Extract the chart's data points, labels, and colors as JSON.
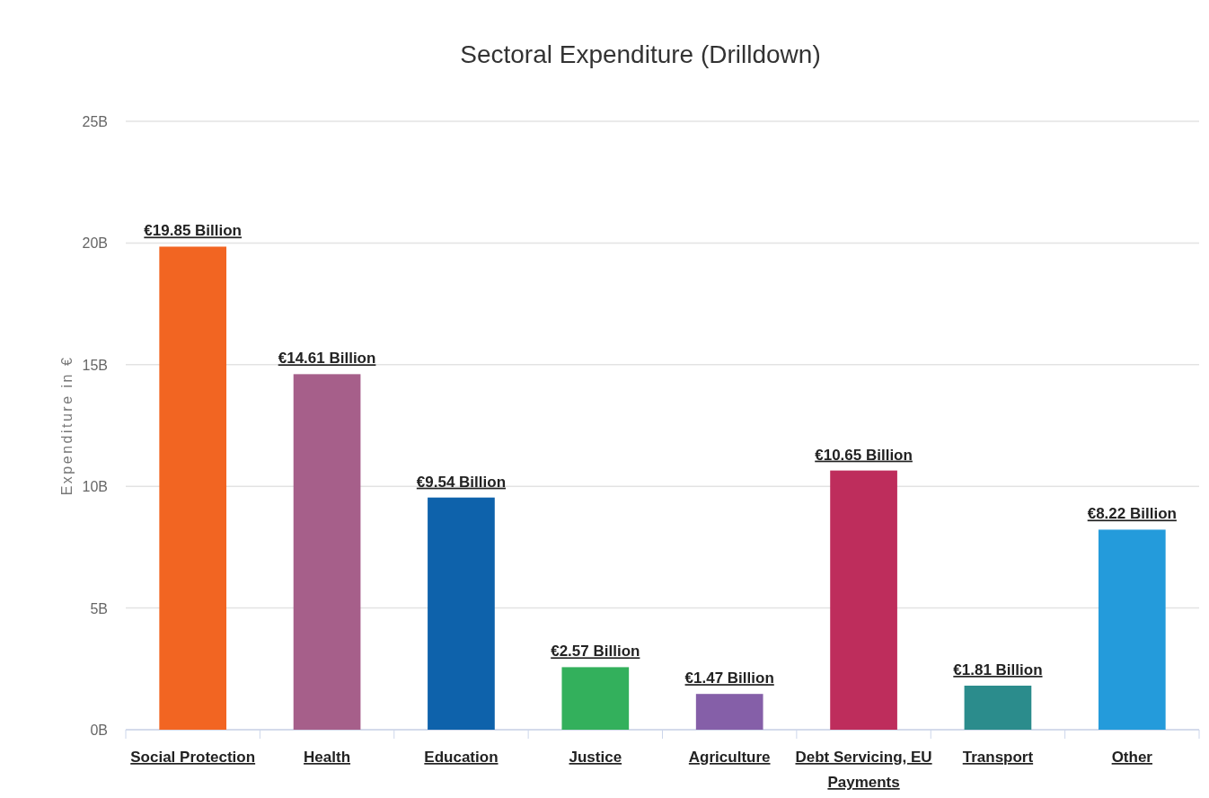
{
  "chart_data": {
    "type": "bar",
    "title": "Sectoral Expenditure (Drilldown)",
    "ylabel": "Expenditure in €",
    "categories": [
      "Social Protection",
      "Health",
      "Education",
      "Justice",
      "Agriculture",
      "Debt Servicing, EU Payments",
      "Transport",
      "Other"
    ],
    "values": [
      19.85,
      14.61,
      9.54,
      2.57,
      1.47,
      10.65,
      1.81,
      8.22
    ],
    "colors": [
      "#f26522",
      "#a65f8a",
      "#0e62ab",
      "#33b05c",
      "#855fa8",
      "#be2d5c",
      "#2b8c8c",
      "#249bdb"
    ],
    "value_labels": [
      "€19.85 Billion",
      "€14.61 Billion",
      "€9.54 Billion",
      "€2.57 Billion",
      "€1.47 Billion",
      "€10.65 Billion",
      "€1.81 Billion",
      "€8.22 Billion"
    ],
    "ylim": [
      0,
      25
    ],
    "yticks": [
      {
        "value": 0,
        "label": "0B"
      },
      {
        "value": 5,
        "label": "5B"
      },
      {
        "value": 10,
        "label": "10B"
      },
      {
        "value": 15,
        "label": "15B"
      },
      {
        "value": 20,
        "label": "20B"
      },
      {
        "value": 25,
        "label": "25B"
      }
    ],
    "grid": "y"
  }
}
